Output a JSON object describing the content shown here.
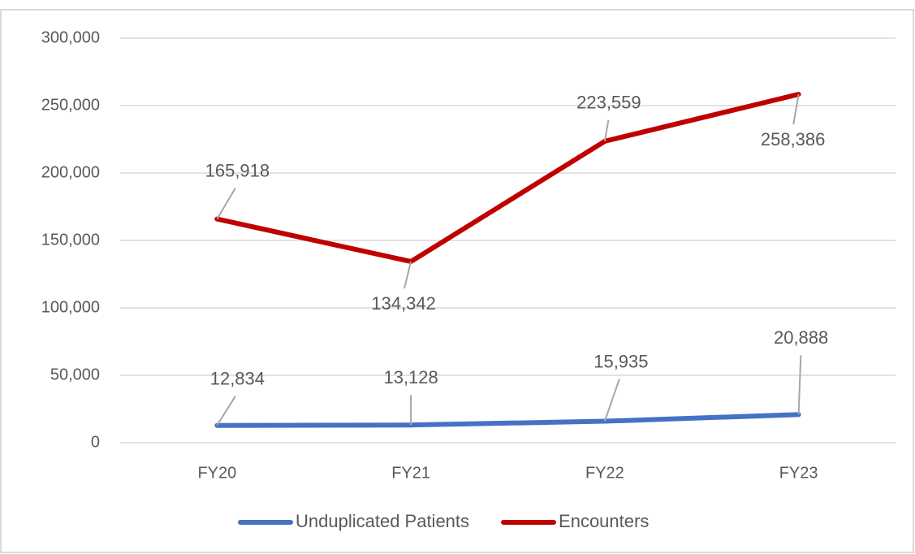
{
  "chart_data": {
    "type": "line",
    "categories": [
      "FY20",
      "FY21",
      "FY22",
      "FY23"
    ],
    "series": [
      {
        "name": "Unduplicated Patients",
        "color": "#4472c4",
        "values": [
          12834,
          13128,
          15935,
          20888
        ],
        "value_labels": [
          "12,834",
          "13,128",
          "15,935",
          "20,888"
        ]
      },
      {
        "name": "Encounters",
        "color": "#c00000",
        "values": [
          165918,
          134342,
          223559,
          258386
        ],
        "value_labels": [
          "165,918",
          "134,342",
          "223,559",
          "258,386"
        ]
      }
    ],
    "ylim": [
      0,
      300000
    ],
    "yticks": [
      0,
      {
        "value": 50000,
        "label": "50,000"
      },
      {
        "value": 100000,
        "label": "100,000"
      },
      {
        "value": 150000,
        "label": "150,000"
      },
      {
        "value": 200000,
        "label": "200,000"
      },
      {
        "value": 250000,
        "label": "250,000"
      },
      {
        "value": 300000,
        "label": "300,000"
      }
    ],
    "grid": true,
    "legend": "bottom"
  }
}
